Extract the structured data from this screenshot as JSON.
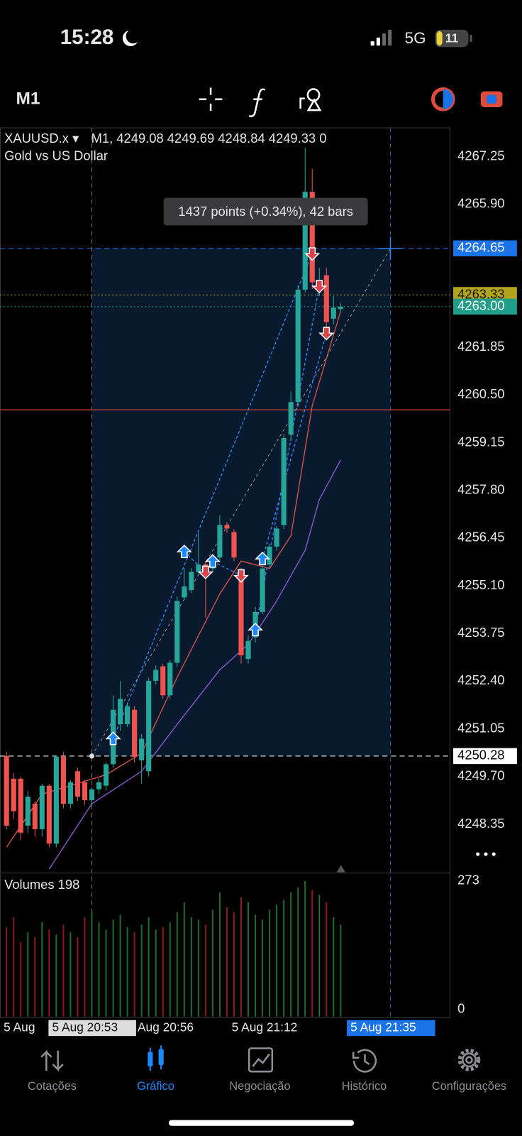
{
  "status_bar": {
    "time": "15:28",
    "network": "5G",
    "battery": "11"
  },
  "toolbar": {
    "timeframe": "M1"
  },
  "chart": {
    "type": "candlestick",
    "symbol": "XAUUSD.x ▾",
    "ohlc_text": "M1, 4249.08 4249.69 4248.84 4249.33 0",
    "description": "Gold vs US Dollar",
    "tooltip": "1437 points (+0.34%), 42 bars",
    "ylim": [
      4246.97,
      4268.07
    ],
    "yticks": [
      4267.25,
      {
        "value": 4265.9,
        "label": "4265.90"
      },
      4261.85,
      {
        "value": 4260.5,
        "label": "4260.50"
      },
      4259.15,
      {
        "value": 4257.8,
        "label": "4257.80"
      },
      4256.45,
      {
        "value": 4255.1,
        "label": "4255.10"
      },
      4253.75,
      {
        "value": 4252.4,
        "label": "4252.40"
      },
      4251.05,
      {
        "value": 4249.7,
        "label": "4249.70"
      },
      4248.35
    ],
    "levels": [
      {
        "price": 4264.65,
        "color": "#1a73e8",
        "text_color": "#ffffff",
        "style": "dashed"
      },
      {
        "price": 4263.33,
        "color": "#b3a41e",
        "text_color": "#1a1a00",
        "style": "dotted"
      },
      {
        "price": {
          "value": 4263,
          "label": "4263.00"
        },
        "color": "#1f9e8a",
        "text_color": "#ffffff",
        "style": "dotted"
      },
      {
        "price": 4250.28,
        "color": "#ffffff",
        "text_color": "#000000",
        "style": "dashed"
      },
      {
        "price": 4260.08,
        "color": "#c0392b",
        "style": "solid",
        "show_label": false
      }
    ],
    "measure": {
      "start_index": 12,
      "end_index": 54
    },
    "open": [
      4250.28,
      4249.64,
      4249.64,
      4248.31,
      4248.93,
      4248.21,
      4249.44,
      4247.8,
      4250.26,
      4248.93,
      4249.85,
      4249.54,
      4249.03,
      4249.34,
      4249.44,
      4250.05,
      4251.18,
      4251.18,
      4251.59,
      4250.16,
      4249.85,
      4252.41,
      4252.82,
      4252,
      4252.92,
      4254.77,
      4254.98,
      4255.49,
      4255.7,
      4255.59,
      4255.9,
      4256.82,
      4256.62,
      4255.49,
      4253.03,
      4253.64,
      4254.36,
      4255.7,
      4256.21,
      4256.82,
      4259.38,
      4260.3,
      4263.48,
      4266.25,
      4263.48,
      4263.89,
      4262.66,
      4262.93
    ],
    "high": [
      4250.4,
      4249.8,
      4249.7,
      4249.3,
      4249,
      4249.5,
      4249.5,
      4250.3,
      4250.4,
      4249.6,
      4249.95,
      4249.6,
      4249.4,
      4249.65,
      4250.1,
      4252,
      4252.4,
      4251.8,
      4251.7,
      4250.9,
      4252.5,
      4252.85,
      4252.9,
      4253,
      4254.8,
      4255.6,
      4255.6,
      4256.6,
      4255.8,
      4256,
      4257.1,
      4256.9,
      4256.7,
      4255.6,
      4253.7,
      4254.5,
      4255.7,
      4256.3,
      4256.8,
      4259.4,
      4260.6,
      4263.6,
      4267.5,
      4266.9,
      4264.1,
      4264.1,
      4263.3,
      4263.1
    ],
    "low": [
      4248.2,
      4248.5,
      4247.9,
      4248.1,
      4248,
      4248,
      4247.7,
      4247.7,
      4248.8,
      4248.8,
      4249,
      4248.9,
      4248.9,
      4249.2,
      4249.3,
      4249.95,
      4251,
      4251.1,
      4250.1,
      4249.5,
      4249.7,
      4252.3,
      4251.9,
      4251.9,
      4252.8,
      4254.7,
      4254.9,
      4255.4,
      4254.2,
      4255.5,
      4255.8,
      4256.6,
      4255.8,
      4252.9,
      4252.9,
      4253.5,
      4254.3,
      4255.6,
      4256.1,
      4256.7,
      4259.2,
      4260.2,
      4263.4,
      4263.5,
      4263.3,
      4262.4,
      4262.5,
      4262.85
    ],
    "close": [
      4248.31,
      4248.72,
      4248.11,
      4249.13,
      4248.21,
      4249.44,
      4247.8,
      4250.26,
      4248.93,
      4249.54,
      4249.13,
      4249.03,
      4249.34,
      4249.54,
      4250.05,
      4251.59,
      4251.9,
      4251.69,
      4250.26,
      4250.77,
      4252.41,
      4252.72,
      4252,
      4252.92,
      4254.67,
      4255.08,
      4255.49,
      4255.7,
      4255.49,
      4255.9,
      4256.82,
      4256.72,
      4255.9,
      4253.13,
      4253.54,
      4254.36,
      4255.59,
      4256.21,
      4256.72,
      4259.28,
      4260.3,
      4263.48,
      4266.25,
      4263.69,
      4263.69,
      4262.56,
      4262.97,
      4263
    ],
    "up_color": "#26a69a",
    "down_color": "#ef5350",
    "moving_averages": [
      {
        "color": "#d9534f",
        "x": [
          0,
          5,
          14,
          19,
          24,
          30,
          33,
          37,
          40,
          43,
          47
        ],
        "values": [
          4247.7,
          4249.2,
          4249.75,
          4250.36,
          4252.51,
          4254.87,
          4255.8,
          4255.59,
          4256.51,
          4260.2,
          4262.87
        ]
      },
      {
        "color": "#8e5bd6",
        "x": [
          6,
          12,
          19,
          24,
          30,
          34,
          38,
          42,
          44,
          47
        ],
        "values": [
          4247.08,
          4248.93,
          4249.85,
          4251.18,
          4252.72,
          4253.44,
          4254.67,
          4256.1,
          4257.54,
          4258.66
        ]
      }
    ],
    "buys": {
      "index": [
        15,
        25,
        29,
        35,
        36
      ],
      "price": [
        4250.77,
        4256.06,
        4255.79,
        4253.85,
        4255.86
      ]
    },
    "sells": {
      "index": [
        28,
        33,
        43,
        44,
        45
      ],
      "price": [
        4255.49,
        4255.39,
        4264.5,
        4263.58,
        4262.25
      ]
    },
    "volume_title": "Volumes 198",
    "y2lim": [
      0,
      273
    ],
    "y2ticks": [
      273,
      0
    ],
    "volumes": [
      180,
      200,
      150,
      170,
      160,
      190,
      175,
      165,
      185,
      170,
      160,
      200,
      210,
      190,
      175,
      195,
      205,
      180,
      170,
      185,
      200,
      175,
      180,
      190,
      210,
      230,
      200,
      195,
      185,
      215,
      250,
      220,
      210,
      240,
      230,
      205,
      195,
      215,
      225,
      235,
      250,
      260,
      273,
      255,
      245,
      230,
      200,
      185
    ],
    "time_labels": [
      "5 Aug",
      "5 Aug 20:53",
      "Aug 20:56",
      "5 Aug 21:12",
      "5 Aug 21:35"
    ]
  },
  "nav": {
    "items": [
      "Cotações",
      "Gráfico",
      "Negociação",
      "Histórico",
      "Configurações"
    ],
    "active": 1
  }
}
